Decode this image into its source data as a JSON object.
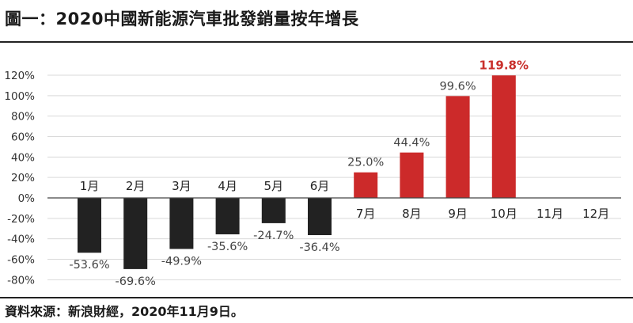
{
  "title": "圖一：2020中國新能源汽車批發銷量按年增長",
  "source": "資料來源：新浪財經，2020年11月9日。",
  "colors": {
    "negative": "#222222",
    "positive": "#cc2a2a",
    "highlight_label": "#c9302c",
    "grid": "#d9d9d9"
  },
  "chart_data": {
    "type": "bar",
    "categories": [
      "1月",
      "2月",
      "3月",
      "4月",
      "5月",
      "6月",
      "7月",
      "8月",
      "9月",
      "10月",
      "11月",
      "12月"
    ],
    "values": [
      -53.6,
      -69.6,
      -49.9,
      -35.6,
      -24.7,
      -36.4,
      25.0,
      44.4,
      99.6,
      119.8,
      null,
      null
    ],
    "value_labels": [
      "-53.6%",
      "-69.6%",
      "-49.9%",
      "-35.6%",
      "-24.7%",
      "-36.4%",
      "25.0%",
      "44.4%",
      "99.6%",
      "119.8%",
      "",
      ""
    ],
    "y_ticks": [
      "120%",
      "100%",
      "80%",
      "60%",
      "40%",
      "20%",
      "0%",
      "-20%",
      "-40%",
      "-60%",
      "-80%"
    ],
    "ylim": [
      -80,
      120
    ],
    "grid": true,
    "highlight_index": 9
  }
}
